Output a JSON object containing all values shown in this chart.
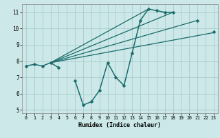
{
  "title": "",
  "xlabel": "Humidex (Indice chaleur)",
  "xlim": [
    -0.5,
    23.5
  ],
  "ylim": [
    4.8,
    11.5
  ],
  "xticks": [
    0,
    1,
    2,
    3,
    4,
    5,
    6,
    7,
    8,
    9,
    10,
    11,
    12,
    13,
    14,
    15,
    16,
    17,
    18,
    19,
    20,
    21,
    22,
    23
  ],
  "yticks": [
    5,
    6,
    7,
    8,
    9,
    10,
    11
  ],
  "bg_color": "#cce8e8",
  "line_color": "#1a6b6b",
  "grid_color": "#aacccc",
  "lines": [
    {
      "x": [
        0,
        1,
        2,
        3,
        4,
        6,
        7,
        8,
        9,
        10,
        11,
        12,
        13,
        14,
        15,
        16,
        17,
        18,
        21,
        23
      ],
      "y": [
        7.7,
        7.8,
        7.7,
        7.9,
        7.6,
        6.8,
        5.3,
        5.5,
        6.2,
        7.9,
        7.0,
        6.5,
        8.5,
        10.5,
        11.2,
        11.1,
        11.0,
        11.0,
        10.5,
        9.8
      ],
      "marker": "D",
      "markersize": 2.5,
      "linewidth": 1.1,
      "connected": false,
      "gaps_after": [
        4,
        18,
        21
      ]
    },
    {
      "x": [
        3,
        23
      ],
      "y": [
        7.9,
        9.75
      ],
      "marker": null,
      "linewidth": 0.9
    },
    {
      "x": [
        3,
        21
      ],
      "y": [
        7.9,
        10.5
      ],
      "marker": null,
      "linewidth": 0.9
    },
    {
      "x": [
        3,
        18
      ],
      "y": [
        7.9,
        11.0
      ],
      "marker": null,
      "linewidth": 0.9
    },
    {
      "x": [
        3,
        15
      ],
      "y": [
        7.9,
        11.2
      ],
      "marker": null,
      "linewidth": 0.9
    }
  ],
  "main_line_segments": [
    {
      "x": [
        0,
        1,
        2,
        3,
        4
      ],
      "y": [
        7.7,
        7.8,
        7.7,
        7.9,
        7.6
      ]
    },
    {
      "x": [
        6,
        7,
        8,
        9,
        10,
        11,
        12,
        13,
        14,
        15,
        16,
        17,
        18
      ],
      "y": [
        6.8,
        5.3,
        5.5,
        6.2,
        7.9,
        7.0,
        6.5,
        8.5,
        10.5,
        11.2,
        11.1,
        11.0,
        11.0
      ]
    },
    {
      "x": [
        21
      ],
      "y": [
        10.5
      ]
    },
    {
      "x": [
        23
      ],
      "y": [
        9.8
      ]
    }
  ]
}
